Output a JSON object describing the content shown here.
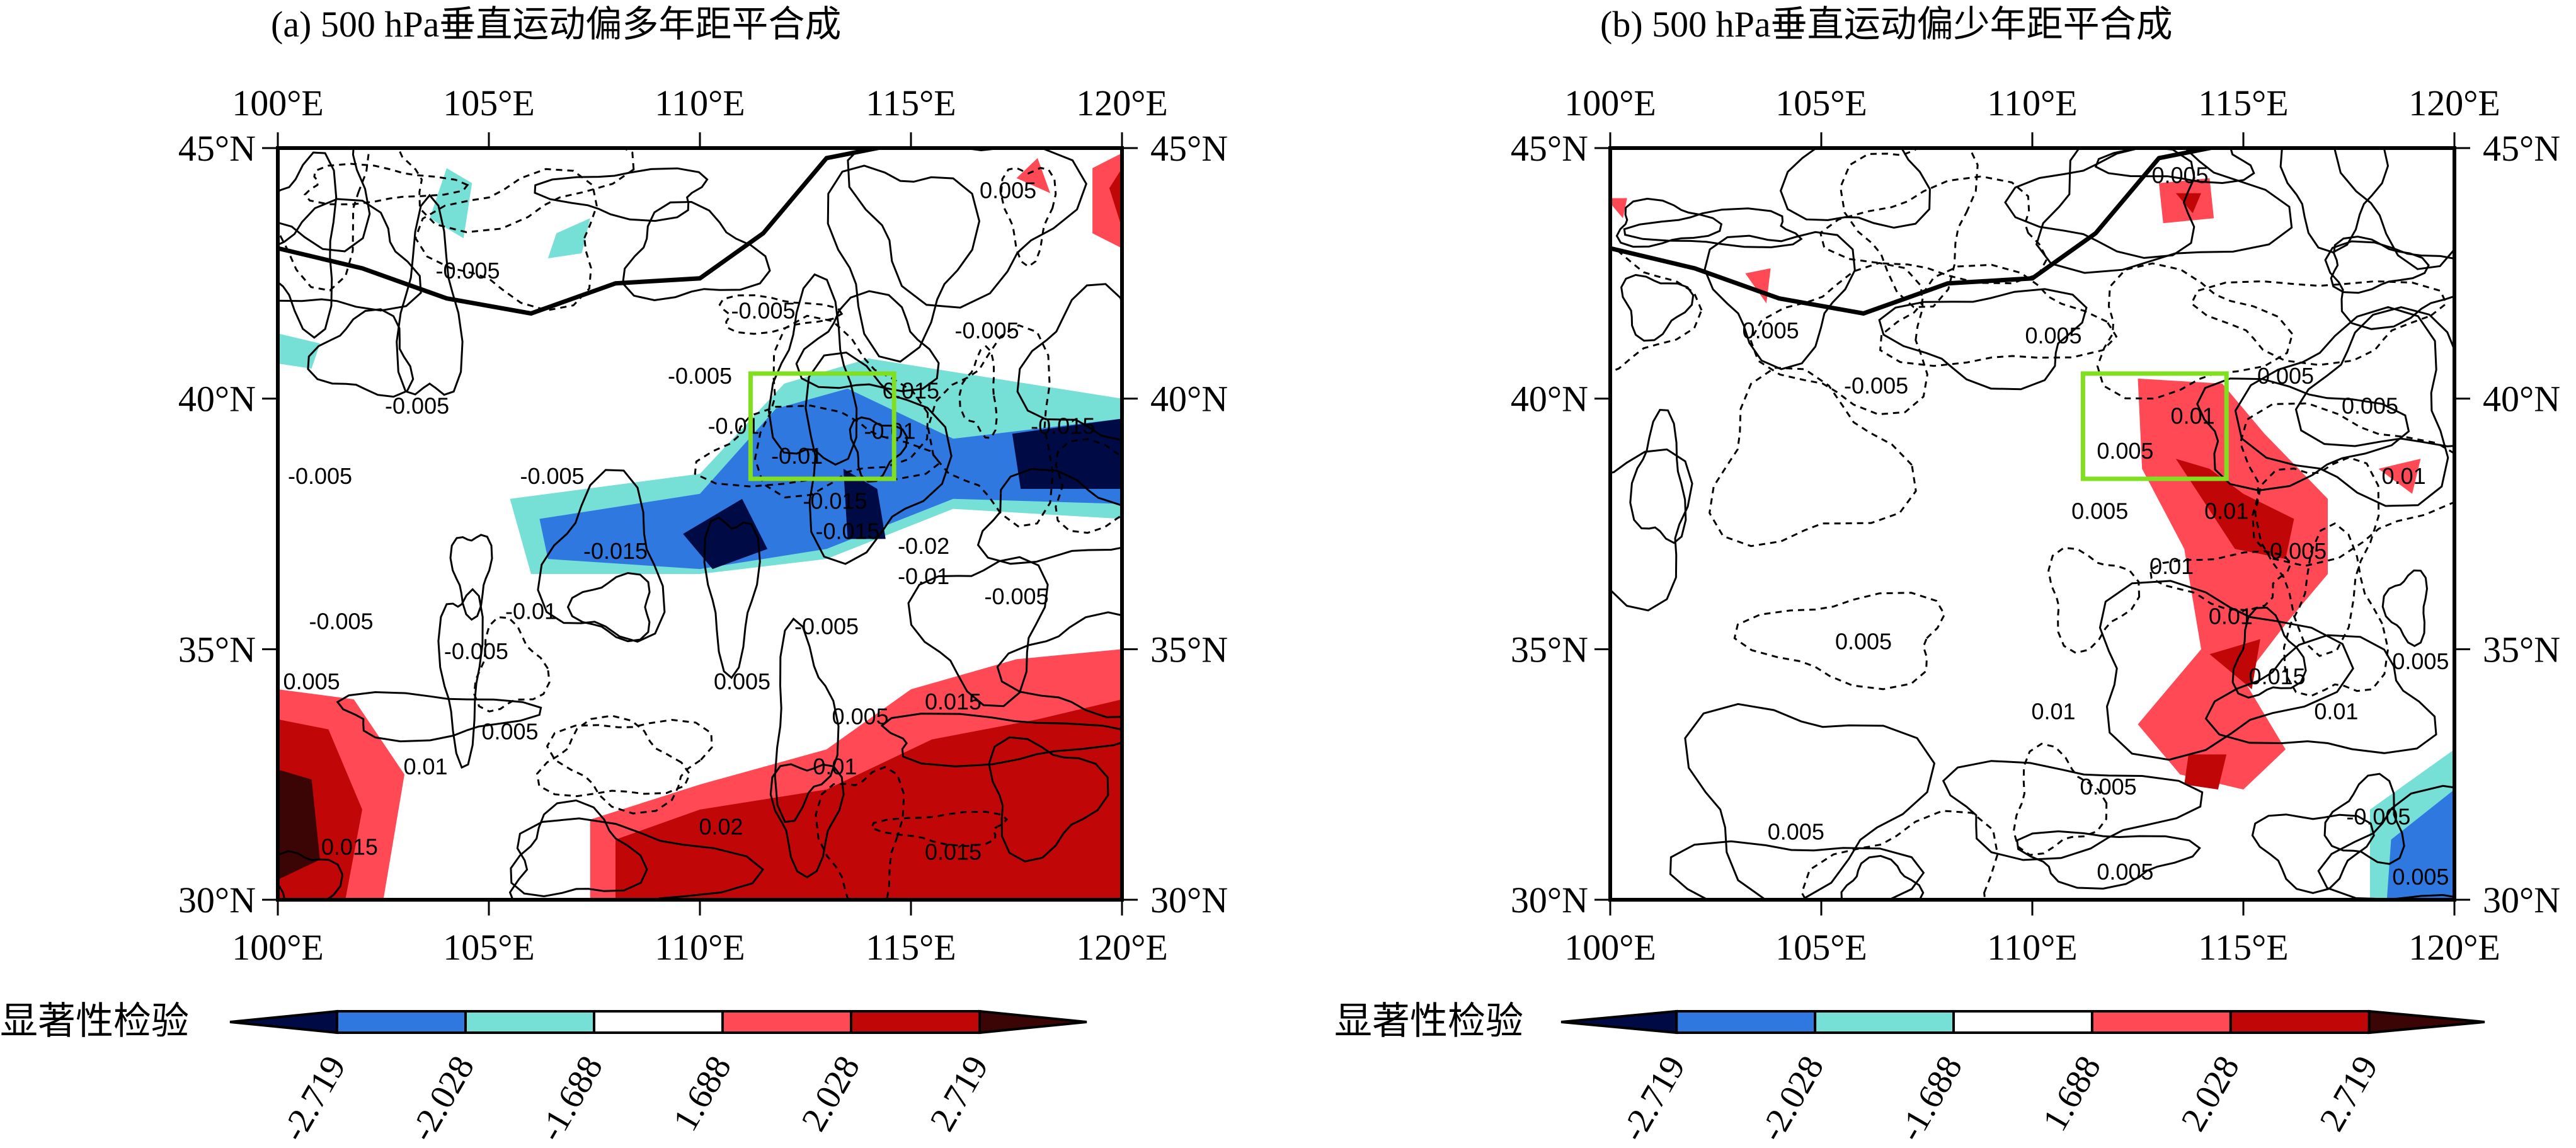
{
  "panels": [
    {
      "id": "a",
      "title": "(a) 500 hPa垂直运动偏多年距平合成",
      "lon_ticks": [
        "100°E",
        "105°E",
        "110°E",
        "115°E",
        "120°E"
      ],
      "lat_ticks": [
        "45°N",
        "40°N",
        "35°N",
        "30°N"
      ],
      "contour_labels": [
        "0.005",
        "-0.005",
        "-0.005",
        "-0.005",
        "-0.005",
        "-0.005",
        "-0.005",
        "-0.01",
        "-0.01",
        "-0.01",
        "0.015",
        "-0.015",
        "-0.015",
        "-0.015",
        "-0.015",
        "-0.02",
        "-0.01",
        "-0.005",
        "-0.005",
        "-0.01",
        "-0.005",
        "-0.005",
        "0.005",
        "0.005",
        "0.005",
        "0.005",
        "0.015",
        "0.01",
        "0.01",
        "0.02",
        "0.015",
        "0.015",
        "-0.005"
      ]
    },
    {
      "id": "b",
      "title": "(b) 500 hPa垂直运动偏少年距平合成",
      "lon_ticks": [
        "100°E",
        "105°E",
        "110°E",
        "115°E",
        "120°E"
      ],
      "lat_ticks": [
        "45°N",
        "40°N",
        "35°N",
        "30°N"
      ],
      "contour_labels": [
        "0.005",
        "0.005",
        "0.005",
        "-0.005",
        "0.005",
        "0.005",
        "0.01",
        "0.005",
        "0.005",
        "0.01",
        "0.005",
        "0.01",
        "0.01",
        "0.015",
        "0.01",
        "0.005",
        "0.005",
        "0.01",
        "0.005",
        "0.005",
        "0.005",
        "-0.005",
        "0.005",
        "0.01"
      ]
    }
  ],
  "colorbar": {
    "label": "显著性检验",
    "ticks": [
      "-2.719",
      "-2.028",
      "-1.688",
      "1.688",
      "2.028",
      "2.719"
    ],
    "colors": [
      "#000a45",
      "#2e78e0",
      "#76dfd6",
      "#ffffff",
      "#ff4a55",
      "#c00606",
      "#3c0505"
    ]
  },
  "box_color": "#80e020"
}
